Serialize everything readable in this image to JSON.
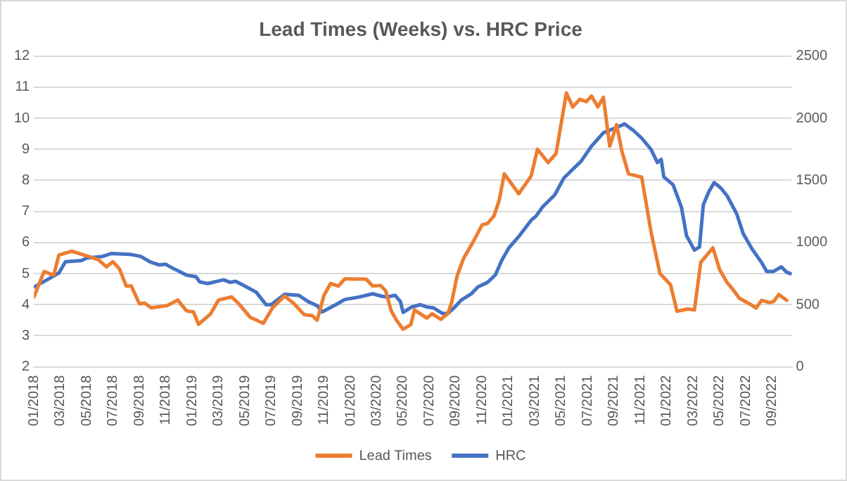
{
  "chart_data": {
    "type": "line",
    "title": "Lead Times (Weeks) vs. HRC Price",
    "xlim": [
      "2018-01-01",
      "2022-10-16"
    ],
    "xticks": [
      {
        "value": "2018-01",
        "label": "01/2018"
      },
      {
        "value": "2018-03",
        "label": "03/2018"
      },
      {
        "value": "2018-05",
        "label": "05/2018"
      },
      {
        "value": "2018-07",
        "label": "07/2018"
      },
      {
        "value": "2018-09",
        "label": "09/2018"
      },
      {
        "value": "2018-11",
        "label": "11/2018"
      },
      {
        "value": "2019-01",
        "label": "01/2019"
      },
      {
        "value": "2019-03",
        "label": "03/2019"
      },
      {
        "value": "2019-05",
        "label": "05/2019"
      },
      {
        "value": "2019-07",
        "label": "07/2019"
      },
      {
        "value": "2019-09",
        "label": "09/2019"
      },
      {
        "value": "2019-11",
        "label": "11/2019"
      },
      {
        "value": "2020-01",
        "label": "01/2020"
      },
      {
        "value": "2020-03",
        "label": "03/2020"
      },
      {
        "value": "2020-05",
        "label": "05/2020"
      },
      {
        "value": "2020-07",
        "label": "07/2020"
      },
      {
        "value": "2020-09",
        "label": "09/2020"
      },
      {
        "value": "2020-11",
        "label": "11/2020"
      },
      {
        "value": "2021-01",
        "label": "01/2021"
      },
      {
        "value": "2021-03",
        "label": "03/2021"
      },
      {
        "value": "2021-05",
        "label": "05/2021"
      },
      {
        "value": "2021-07",
        "label": "07/2021"
      },
      {
        "value": "2021-09",
        "label": "09/2021"
      },
      {
        "value": "2021-11",
        "label": "11/2021"
      },
      {
        "value": "2022-01",
        "label": "01/2022"
      },
      {
        "value": "2022-03",
        "label": "03/2022"
      },
      {
        "value": "2022-05",
        "label": "05/2022"
      },
      {
        "value": "2022-07",
        "label": "07/2022"
      },
      {
        "value": "2022-09",
        "label": "09/2022"
      }
    ],
    "ylim": [
      2,
      12
    ],
    "yticks": [
      2,
      3,
      4,
      5,
      6,
      7,
      8,
      9,
      10,
      11,
      12
    ],
    "y2lim": [
      0,
      2500
    ],
    "y2ticks": [
      0,
      500,
      1000,
      1500,
      2000,
      2500
    ],
    "grid": "y",
    "legend": "bottom",
    "marker": "none",
    "line_style": "solid",
    "series": [
      {
        "name": "Lead Times",
        "color": "#ed7d31",
        "x": [
          "2018-01-01",
          "2018-01-25",
          "2018-02-06",
          "2018-02-15",
          "2018-02-26",
          "2018-03-28",
          "2018-04-25",
          "2018-05-28",
          "2018-06-16",
          "2018-07-01",
          "2018-07-16",
          "2018-08-01",
          "2018-08-13",
          "2018-09-01",
          "2018-09-13",
          "2018-09-28",
          "2018-11-04",
          "2018-11-28",
          "2018-12-19",
          "2019-01-04",
          "2019-01-16",
          "2019-02-12",
          "2019-03-01",
          "2019-04-01",
          "2019-04-16",
          "2019-05-13",
          "2019-06-13",
          "2019-07-04",
          "2019-08-01",
          "2019-08-22",
          "2019-09-16",
          "2019-10-04",
          "2019-10-16",
          "2019-11-01",
          "2019-11-16",
          "2019-12-04",
          "2019-12-19",
          "2020-02-07",
          "2020-02-21",
          "2020-03-10",
          "2020-03-22",
          "2020-04-04",
          "2020-04-16",
          "2020-05-01",
          "2020-05-19",
          "2020-05-28",
          "2020-06-25",
          "2020-07-07",
          "2020-07-28",
          "2020-08-13",
          "2020-08-22",
          "2020-09-04",
          "2020-09-19",
          "2020-10-10",
          "2020-11-01",
          "2020-11-13",
          "2020-11-28",
          "2020-12-10",
          "2020-12-22",
          "2021-01-25",
          "2021-02-21",
          "2021-03-07",
          "2021-04-01",
          "2021-04-19",
          "2021-05-13",
          "2021-05-28",
          "2021-06-13",
          "2021-06-28",
          "2021-07-10",
          "2021-07-25",
          "2021-08-07",
          "2021-08-22",
          "2021-09-07",
          "2021-09-19",
          "2021-10-04",
          "2021-11-04",
          "2021-11-25",
          "2021-12-16",
          "2022-01-10",
          "2022-01-25",
          "2022-02-18",
          "2022-03-04",
          "2022-03-19",
          "2022-04-16",
          "2022-05-01",
          "2022-05-19",
          "2022-06-01",
          "2022-06-16",
          "2022-07-13",
          "2022-07-25",
          "2022-08-07",
          "2022-08-25",
          "2022-09-04",
          "2022-09-16",
          "2022-10-04"
        ],
        "values": [
          4.25,
          5.07,
          5.0,
          4.95,
          5.6,
          5.72,
          5.6,
          5.45,
          5.22,
          5.38,
          5.15,
          4.6,
          4.6,
          4.03,
          4.05,
          3.9,
          3.97,
          4.15,
          3.8,
          3.77,
          3.37,
          3.7,
          4.15,
          4.25,
          4.05,
          3.6,
          3.4,
          3.9,
          4.28,
          4.05,
          3.68,
          3.65,
          3.5,
          4.3,
          4.68,
          4.6,
          4.83,
          4.82,
          4.6,
          4.62,
          4.45,
          3.8,
          3.5,
          3.21,
          3.36,
          3.83,
          3.57,
          3.71,
          3.53,
          3.71,
          4.07,
          4.93,
          5.5,
          6.0,
          6.57,
          6.61,
          6.86,
          7.36,
          8.21,
          7.57,
          8.14,
          9.0,
          8.57,
          8.86,
          10.81,
          10.36,
          10.61,
          10.53,
          10.71,
          10.36,
          10.67,
          9.1,
          9.79,
          8.93,
          8.21,
          8.1,
          6.36,
          5.0,
          4.64,
          3.79,
          3.86,
          3.83,
          5.36,
          5.83,
          5.14,
          4.71,
          4.5,
          4.21,
          4.0,
          3.89,
          4.14,
          4.07,
          4.1,
          4.33,
          4.14
        ]
      },
      {
        "name": "HRC",
        "color": "#4472c4",
        "axis": "y2",
        "x": [
          "2018-01-01",
          "2018-02-01",
          "2018-02-26",
          "2018-03-13",
          "2018-04-19",
          "2018-05-01",
          "2018-06-07",
          "2018-06-28",
          "2018-08-10",
          "2018-09-04",
          "2018-09-25",
          "2018-10-16",
          "2018-11-01",
          "2018-11-16",
          "2018-12-19",
          "2019-01-10",
          "2019-01-19",
          "2019-02-06",
          "2019-03-13",
          "2019-03-28",
          "2019-04-10",
          "2019-05-01",
          "2019-05-28",
          "2019-06-19",
          "2019-07-01",
          "2019-08-01",
          "2019-09-04",
          "2019-09-25",
          "2019-10-16",
          "2019-10-28",
          "2019-11-28",
          "2019-12-19",
          "2020-01-22",
          "2020-02-21",
          "2020-03-13",
          "2020-03-25",
          "2020-04-13",
          "2020-04-25",
          "2020-05-01",
          "2020-05-22",
          "2020-06-10",
          "2020-06-25",
          "2020-07-10",
          "2020-08-01",
          "2020-08-13",
          "2020-08-28",
          "2020-09-13",
          "2020-10-07",
          "2020-10-22",
          "2020-11-13",
          "2020-12-01",
          "2020-12-16",
          "2021-01-01",
          "2021-01-28",
          "2021-02-21",
          "2021-03-04",
          "2021-03-19",
          "2021-04-16",
          "2021-05-07",
          "2021-05-28",
          "2021-06-16",
          "2021-07-10",
          "2021-08-07",
          "2021-09-04",
          "2021-09-25",
          "2021-10-16",
          "2021-11-04",
          "2021-11-25",
          "2021-12-10",
          "2021-12-19",
          "2021-12-25",
          "2022-01-16",
          "2022-02-04",
          "2022-02-15",
          "2022-02-23",
          "2022-03-04",
          "2022-03-16",
          "2022-03-25",
          "2022-04-07",
          "2022-04-19",
          "2022-05-04",
          "2022-05-19",
          "2022-06-10",
          "2022-06-25",
          "2022-07-16",
          "2022-08-07",
          "2022-08-19",
          "2022-09-04",
          "2022-09-22",
          "2022-10-04",
          "2022-10-13"
        ],
        "values": [
          642,
          700,
          755,
          845,
          855,
          875,
          888,
          912,
          905,
          888,
          845,
          820,
          825,
          795,
          738,
          725,
          683,
          670,
          700,
          680,
          688,
          650,
          600,
          500,
          500,
          583,
          575,
          525,
          492,
          442,
          500,
          542,
          562,
          588,
          568,
          562,
          575,
          525,
          438,
          482,
          500,
          482,
          475,
          429,
          429,
          475,
          536,
          589,
          643,
          679,
          739,
          857,
          953,
          1061,
          1179,
          1214,
          1286,
          1382,
          1518,
          1589,
          1653,
          1775,
          1882,
          1921,
          1953,
          1900,
          1839,
          1750,
          1643,
          1668,
          1528,
          1464,
          1286,
          1054,
          1000,
          939,
          964,
          1304,
          1411,
          1482,
          1439,
          1375,
          1232,
          1071,
          946,
          839,
          768,
          768,
          804,
          761,
          750
        ]
      }
    ]
  }
}
